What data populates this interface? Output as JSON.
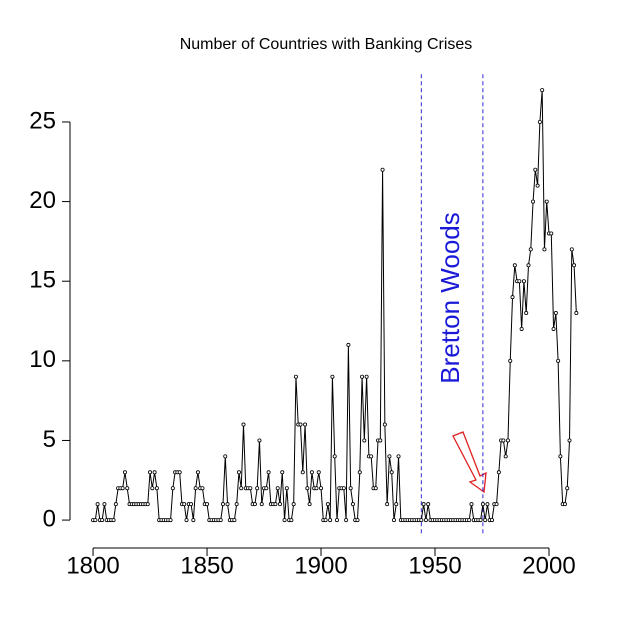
{
  "chart_data": {
    "type": "line",
    "title": "Number of Countries with Banking Crises",
    "annotation": "Bretton Woods",
    "vlines": [
      1944,
      1971
    ],
    "xlim": [
      1792,
      2020
    ],
    "ylim": [
      -1,
      28
    ],
    "xticks": [
      1800,
      1850,
      1900,
      1950,
      2000
    ],
    "yticks": [
      0,
      5,
      10,
      15,
      20,
      25
    ],
    "color": "#000000",
    "vline_color": "#2b2bd0",
    "annotation_color": "#1a1ad8",
    "x": [
      1800,
      1801,
      1802,
      1803,
      1804,
      1805,
      1806,
      1807,
      1808,
      1809,
      1810,
      1811,
      1812,
      1813,
      1814,
      1815,
      1816,
      1817,
      1818,
      1819,
      1820,
      1821,
      1822,
      1823,
      1824,
      1825,
      1826,
      1827,
      1828,
      1829,
      1830,
      1831,
      1832,
      1833,
      1834,
      1835,
      1836,
      1837,
      1838,
      1839,
      1840,
      1841,
      1842,
      1843,
      1844,
      1845,
      1846,
      1847,
      1848,
      1849,
      1850,
      1851,
      1852,
      1853,
      1854,
      1855,
      1856,
      1857,
      1858,
      1859,
      1860,
      1861,
      1862,
      1863,
      1864,
      1865,
      1866,
      1867,
      1868,
      1869,
      1870,
      1871,
      1872,
      1873,
      1874,
      1875,
      1876,
      1877,
      1878,
      1879,
      1880,
      1881,
      1882,
      1883,
      1884,
      1885,
      1886,
      1887,
      1888,
      1889,
      1890,
      1891,
      1892,
      1893,
      1894,
      1895,
      1896,
      1897,
      1898,
      1899,
      1900,
      1901,
      1902,
      1903,
      1904,
      1905,
      1906,
      1907,
      1908,
      1909,
      1910,
      1911,
      1912,
      1913,
      1914,
      1915,
      1916,
      1917,
      1918,
      1919,
      1920,
      1921,
      1922,
      1923,
      1924,
      1925,
      1926,
      1927,
      1928,
      1929,
      1930,
      1931,
      1932,
      1933,
      1934,
      1935,
      1936,
      1937,
      1938,
      1939,
      1940,
      1941,
      1942,
      1943,
      1944,
      1945,
      1946,
      1947,
      1948,
      1949,
      1950,
      1951,
      1952,
      1953,
      1954,
      1955,
      1956,
      1957,
      1958,
      1959,
      1960,
      1961,
      1962,
      1963,
      1964,
      1965,
      1966,
      1967,
      1968,
      1969,
      1970,
      1971,
      1972,
      1973,
      1974,
      1975,
      1976,
      1977,
      1978,
      1979,
      1980,
      1981,
      1982,
      1983,
      1984,
      1985,
      1986,
      1987,
      1988,
      1989,
      1990,
      1991,
      1992,
      1993,
      1994,
      1995,
      1996,
      1997,
      1998,
      1999,
      2000,
      2001,
      2002,
      2003,
      2004,
      2005,
      2006,
      2007,
      2008,
      2009,
      2010,
      2011,
      2012
    ],
    "values": [
      0,
      0,
      1,
      0,
      0,
      1,
      0,
      0,
      0,
      0,
      1,
      2,
      2,
      2,
      3,
      2,
      1,
      1,
      1,
      1,
      1,
      1,
      1,
      1,
      1,
      3,
      2,
      3,
      2,
      0,
      0,
      0,
      0,
      0,
      0,
      2,
      3,
      3,
      3,
      1,
      1,
      0,
      1,
      1,
      0,
      2,
      3,
      2,
      2,
      1,
      1,
      0,
      0,
      0,
      0,
      0,
      0,
      1,
      4,
      1,
      0,
      0,
      0,
      1,
      3,
      2,
      6,
      2,
      2,
      2,
      1,
      1,
      2,
      5,
      1,
      2,
      2,
      3,
      1,
      1,
      1,
      2,
      1,
      3,
      0,
      2,
      0,
      0,
      1,
      9,
      6,
      6,
      3,
      6,
      2,
      1,
      3,
      2,
      2,
      3,
      2,
      0,
      0,
      1,
      0,
      9,
      4,
      0,
      2,
      2,
      2,
      0,
      11,
      2,
      1,
      0,
      0,
      3,
      9,
      5,
      9,
      4,
      4,
      2,
      2,
      5,
      5,
      22,
      6,
      1,
      4,
      3,
      0,
      1,
      4,
      0,
      0,
      0,
      0,
      0,
      0,
      0,
      0,
      0,
      0,
      1,
      0,
      1,
      0,
      0,
      0,
      0,
      0,
      0,
      0,
      0,
      0,
      0,
      0,
      0,
      0,
      0,
      0,
      0,
      0,
      0,
      1,
      0,
      0,
      0,
      0,
      1,
      0,
      1,
      0,
      0,
      1,
      1,
      3,
      5,
      5,
      4,
      5,
      10,
      14,
      16,
      15,
      15,
      12,
      15,
      13,
      16,
      17,
      20,
      22,
      21,
      25,
      27,
      17,
      20,
      18,
      18,
      12,
      13,
      10,
      4,
      1,
      1,
      2,
      5,
      17,
      16,
      13
    ]
  }
}
